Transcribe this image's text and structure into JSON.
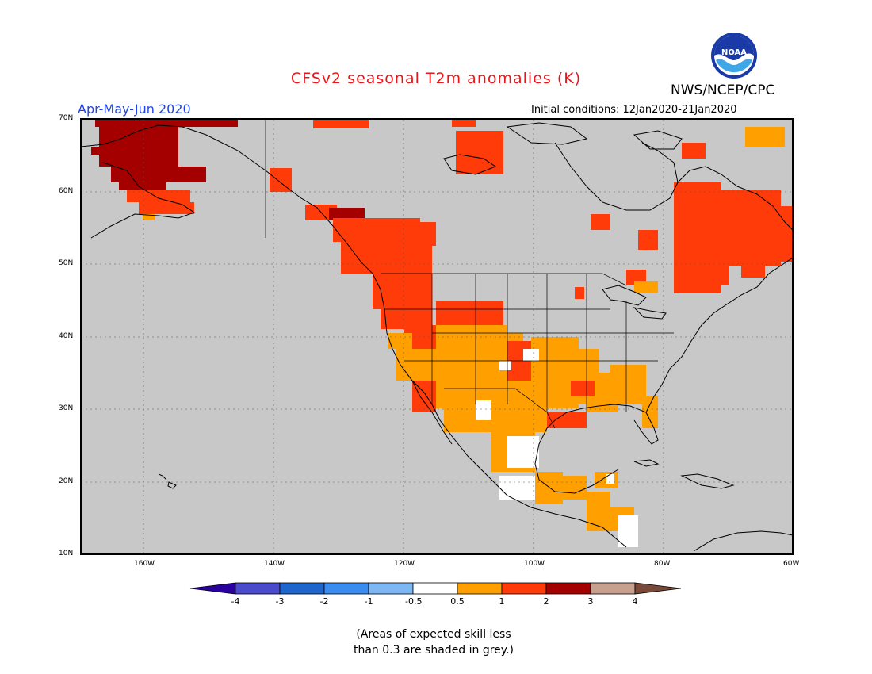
{
  "header": {
    "title": "CFSv2 seasonal T2m anomalies (K)",
    "agency": "NWS/NCEP/CPC",
    "period": "Apr-May-Jun 2020",
    "initial_conditions": "Initial conditions: 12Jan2020-21Jan2020",
    "logo_text": "NOAA"
  },
  "map": {
    "lat_labels": [
      "70N",
      "60N",
      "50N",
      "40N",
      "30N",
      "20N",
      "10N"
    ],
    "lon_labels": [
      "160W",
      "140W",
      "120W",
      "100W",
      "80W",
      "60W"
    ],
    "land_color": "#c8c8c8",
    "skill_mask_note": "grey",
    "anomaly_fill": {
      "0.5_to_1": "#ff9f00",
      "1_to_2": "#ff3b0a",
      "2_to_3": "#a50000",
      "-0.5_to_0.5": "#ffffff"
    }
  },
  "colorbar": {
    "labels": [
      "-4",
      "-3",
      "-2",
      "-1",
      "-0.5",
      "0.5",
      "1",
      "2",
      "3",
      "4"
    ],
    "colors": [
      "#2a00a0",
      "#4a4acc",
      "#1e66cc",
      "#3a8cf0",
      "#7db8f5",
      "#ffffff",
      "#ff9f00",
      "#ff3b0a",
      "#a50000",
      "#c8a08e",
      "#7a4a38"
    ]
  },
  "notes": {
    "line1": "(Areas of expected skill less",
    "line2": "than 0.3 are shaded in grey.)"
  }
}
